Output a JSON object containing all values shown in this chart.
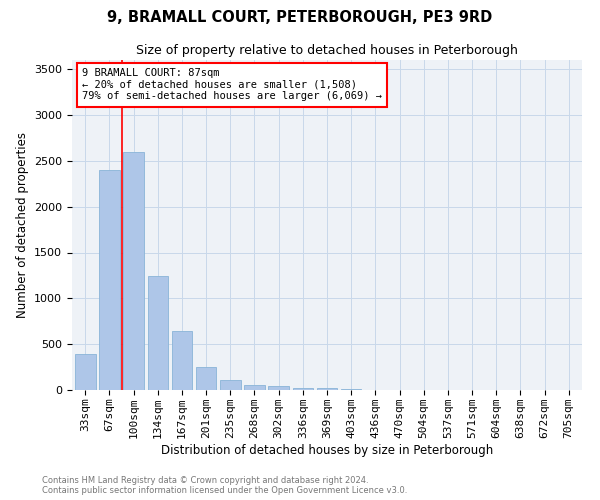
{
  "title": "9, BRAMALL COURT, PETERBOROUGH, PE3 9RD",
  "subtitle": "Size of property relative to detached houses in Peterborough",
  "xlabel": "Distribution of detached houses by size in Peterborough",
  "ylabel": "Number of detached properties",
  "footer_line1": "Contains HM Land Registry data © Crown copyright and database right 2024.",
  "footer_line2": "Contains public sector information licensed under the Open Government Licence v3.0.",
  "bar_labels": [
    "33sqm",
    "67sqm",
    "100sqm",
    "134sqm",
    "167sqm",
    "201sqm",
    "235sqm",
    "268sqm",
    "302sqm",
    "336sqm",
    "369sqm",
    "403sqm",
    "436sqm",
    "470sqm",
    "504sqm",
    "537sqm",
    "571sqm",
    "604sqm",
    "638sqm",
    "672sqm",
    "705sqm"
  ],
  "bar_values": [
    390,
    2400,
    2600,
    1240,
    640,
    250,
    105,
    50,
    40,
    25,
    20,
    15,
    0,
    0,
    0,
    0,
    0,
    0,
    0,
    0,
    0
  ],
  "bar_color": "#aec6e8",
  "bar_edge_color": "#8ab4d8",
  "grid_color": "#c8d8ea",
  "vline_color": "red",
  "vline_x": 1.5,
  "annotation_title": "9 BRAMALL COURT: 87sqm",
  "annotation_line1": "← 20% of detached houses are smaller (1,508)",
  "annotation_line2": "79% of semi-detached houses are larger (6,069) →",
  "annotation_box_color": "white",
  "annotation_box_edge": "red",
  "ylim": [
    0,
    3600
  ],
  "yticks": [
    0,
    500,
    1000,
    1500,
    2000,
    2500,
    3000,
    3500
  ],
  "background_color": "#eef2f7",
  "title_fontsize": 10.5,
  "subtitle_fontsize": 9,
  "ylabel_fontsize": 8.5,
  "xlabel_fontsize": 8.5,
  "tick_fontsize": 8,
  "annotation_fontsize": 7.5,
  "footer_fontsize": 6
}
